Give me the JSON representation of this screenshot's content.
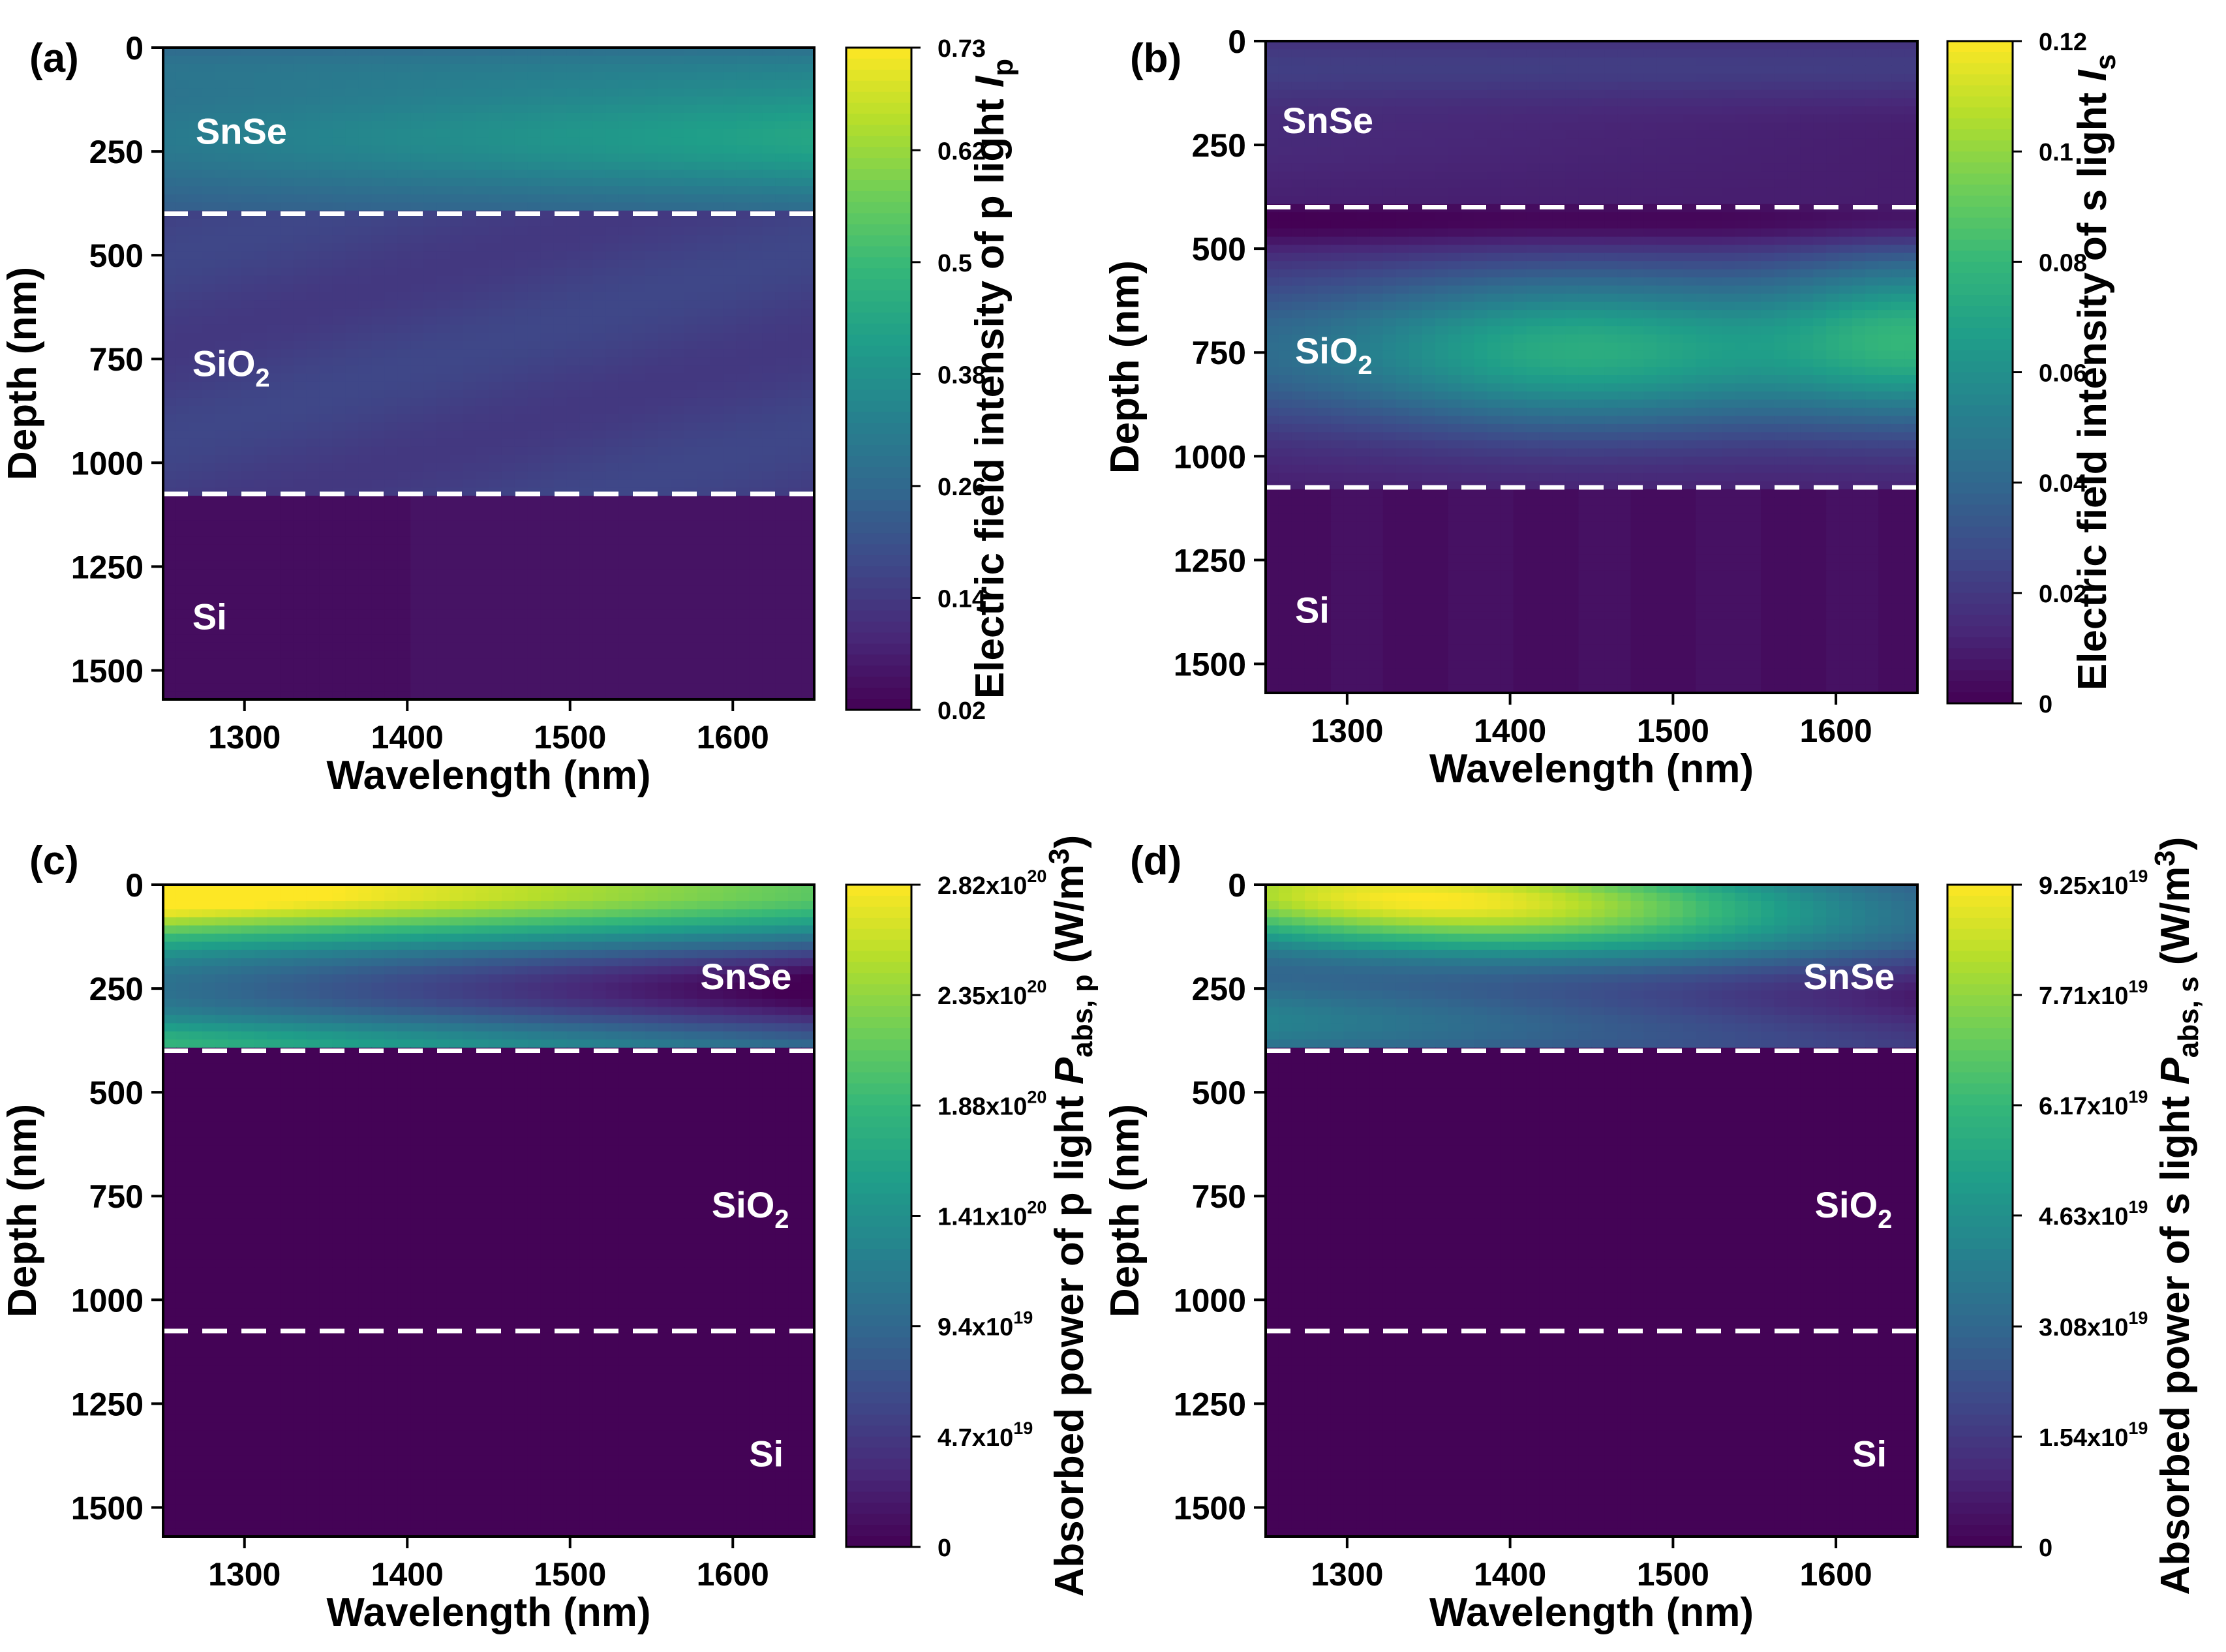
{
  "chart_data": [
    {
      "panel": "(a)",
      "type": "heatmap",
      "quantity": "p_field",
      "xlabel": "Wavelength (nm)",
      "ylabel": "Depth (nm)",
      "xlim": [
        1250,
        1650
      ],
      "ylim": [
        0,
        1570
      ],
      "xticks": [
        1300,
        1400,
        1500,
        1600
      ],
      "yticks": [
        0,
        250,
        500,
        750,
        1000,
        1250,
        1500
      ],
      "layer_boundaries_nm": [
        400,
        1075
      ],
      "layers": [
        {
          "name": "SnSe",
          "sub": "",
          "x": 1270,
          "y": 200
        },
        {
          "name": "SiO",
          "sub": "2",
          "x": 1268,
          "y": 760
        },
        {
          "name": "Si",
          "sub": "",
          "x": 1268,
          "y": 1370
        }
      ],
      "colorbar": {
        "min": 0.02,
        "max": 0.73,
        "ticks": [
          0.02,
          0.14,
          0.26,
          0.38,
          0.5,
          0.62,
          0.73
        ],
        "tick_labels": [
          "0.02",
          "0.14",
          "0.26",
          "0.38",
          "0.5",
          "0.62",
          "0.73"
        ],
        "label_main": "Electric field intensity of p light ",
        "label_var": "I",
        "label_sub": "p",
        "label_tail": ""
      }
    },
    {
      "panel": "(b)",
      "type": "heatmap",
      "quantity": "s_field",
      "xlabel": "Wavelength (nm)",
      "ylabel": "Depth (nm)",
      "xlim": [
        1250,
        1650
      ],
      "ylim": [
        0,
        1570
      ],
      "xticks": [
        1300,
        1400,
        1500,
        1600
      ],
      "yticks": [
        0,
        250,
        500,
        750,
        1000,
        1250,
        1500
      ],
      "layer_boundaries_nm": [
        400,
        1075
      ],
      "layers": [
        {
          "name": "SnSe",
          "sub": "",
          "x": 1260,
          "y": 190
        },
        {
          "name": "SiO",
          "sub": "2",
          "x": 1268,
          "y": 745
        },
        {
          "name": "Si",
          "sub": "",
          "x": 1268,
          "y": 1370
        }
      ],
      "colorbar": {
        "min": 0,
        "max": 0.12,
        "ticks": [
          0,
          0.02,
          0.04,
          0.06,
          0.08,
          0.1,
          0.12
        ],
        "tick_labels": [
          "0",
          "0.02",
          "0.04",
          "0.06",
          "0.08",
          "0.1",
          "0.12"
        ],
        "label_main": "Electric field intensity of s light ",
        "label_var": "I",
        "label_sub": "s",
        "label_tail": ""
      }
    },
    {
      "panel": "(c)",
      "type": "heatmap",
      "quantity": "p_abs",
      "xlabel": "Wavelength (nm)",
      "ylabel": "Depth (nm)",
      "xlim": [
        1250,
        1650
      ],
      "ylim": [
        0,
        1570
      ],
      "xticks": [
        1300,
        1400,
        1500,
        1600
      ],
      "yticks": [
        0,
        250,
        500,
        750,
        1000,
        1250,
        1500
      ],
      "layer_boundaries_nm": [
        400,
        1075
      ],
      "layers": [
        {
          "name": "SnSe",
          "sub": "",
          "x": 1580,
          "y": 220
        },
        {
          "name": "SiO",
          "sub": "2",
          "x": 1587,
          "y": 770
        },
        {
          "name": "Si",
          "sub": "",
          "x": 1610,
          "y": 1370
        }
      ],
      "colorbar": {
        "min": 0,
        "max": 2.82e+20,
        "ticks": [
          0,
          4.7e+19,
          9.4e+19,
          1.41e+20,
          1.88e+20,
          2.35e+20,
          2.82e+20
        ],
        "tick_labels": [
          [
            "0",
            ""
          ],
          [
            "4.7x10",
            "19"
          ],
          [
            "9.4x10",
            "19"
          ],
          [
            "1.41x10",
            "20"
          ],
          [
            "1.88x10",
            "20"
          ],
          [
            "2.35x10",
            "20"
          ],
          [
            "2.82x10",
            "20"
          ]
        ],
        "label_main": "Absorbed power of p light ",
        "label_var": "P",
        "label_sub": "abs, p",
        "label_tail": " (W/m",
        "label_sup": "3",
        "label_close": ")"
      }
    },
    {
      "panel": "(d)",
      "type": "heatmap",
      "quantity": "s_abs",
      "xlabel": "Wavelength (nm)",
      "ylabel": "Depth (nm)",
      "xlim": [
        1250,
        1650
      ],
      "ylim": [
        0,
        1570
      ],
      "xticks": [
        1300,
        1400,
        1500,
        1600
      ],
      "yticks": [
        0,
        250,
        500,
        750,
        1000,
        1250,
        1500
      ],
      "layer_boundaries_nm": [
        400,
        1075
      ],
      "layers": [
        {
          "name": "SnSe",
          "sub": "",
          "x": 1580,
          "y": 220
        },
        {
          "name": "SiO",
          "sub": "2",
          "x": 1587,
          "y": 770
        },
        {
          "name": "Si",
          "sub": "",
          "x": 1610,
          "y": 1370
        }
      ],
      "colorbar": {
        "min": 0,
        "max": 9.25e+19,
        "ticks": [
          0,
          1.54e+19,
          3.08e+19,
          4.63e+19,
          6.17e+19,
          7.71e+19,
          9.25e+19
        ],
        "tick_labels": [
          [
            "0",
            ""
          ],
          [
            "1.54x10",
            "19"
          ],
          [
            "3.08x10",
            "19"
          ],
          [
            "4.63x10",
            "19"
          ],
          [
            "6.17x10",
            "19"
          ],
          [
            "7.71x10",
            "19"
          ],
          [
            "9.25x10",
            "19"
          ]
        ],
        "label_main": "Absorbed power of s light ",
        "label_var": "P",
        "label_sub": "abs, s",
        "label_tail": " (W/m",
        "label_sup": "3",
        "label_close": ")"
      }
    }
  ],
  "colors": {
    "boundary_line": "#ffffff",
    "layer_text": "#ffffff",
    "axis": "#000000",
    "colormap_viridis": [
      "#440154",
      "#482878",
      "#3e4989",
      "#31688e",
      "#26828e",
      "#1f9e89",
      "#35b779",
      "#6ece58",
      "#b5de2b",
      "#fde725"
    ]
  }
}
